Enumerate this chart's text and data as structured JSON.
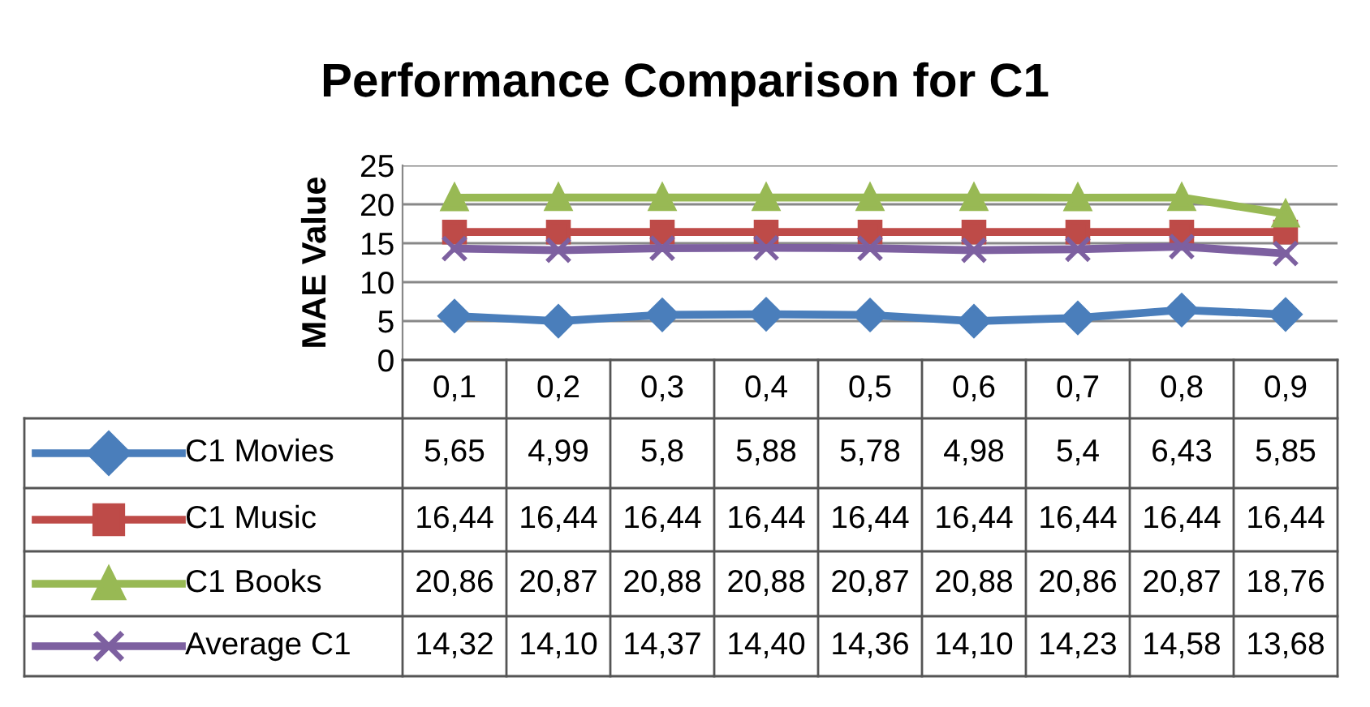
{
  "chart_data": {
    "type": "line",
    "title": "Performance Comparison for C1",
    "ylabel": "MAE Value",
    "categories": [
      "0,1",
      "0,2",
      "0,3",
      "0,4",
      "0,5",
      "0,6",
      "0,7",
      "0,8",
      "0,9"
    ],
    "ylim": [
      0,
      25
    ],
    "yticks": [
      0,
      5,
      10,
      15,
      20,
      25
    ],
    "grid": "y",
    "legend": "bottom left",
    "tick_labels": "y",
    "line_style": "solid",
    "series": [
      {
        "name": "C1 Movies",
        "color": "#4a7ebb",
        "marker": "diamond",
        "values": [
          5.65,
          4.99,
          5.8,
          5.88,
          5.78,
          4.98,
          5.4,
          6.43,
          5.85
        ],
        "value_labels": [
          "5,65",
          "4,99",
          "5,8",
          "5,88",
          "5,78",
          "4,98",
          "5,4",
          "6,43",
          "5,85"
        ]
      },
      {
        "name": "C1 Music",
        "color": "#be4b48",
        "marker": "square",
        "values": [
          16.44,
          16.44,
          16.44,
          16.44,
          16.44,
          16.44,
          16.44,
          16.44,
          16.44
        ],
        "value_labels": [
          "16,44",
          "16,44",
          "16,44",
          "16,44",
          "16,44",
          "16,44",
          "16,44",
          "16,44",
          "16,44"
        ]
      },
      {
        "name": "C1 Books",
        "color": "#98b954",
        "marker": "triangle",
        "values": [
          20.86,
          20.87,
          20.88,
          20.88,
          20.87,
          20.88,
          20.86,
          20.87,
          18.76
        ],
        "value_labels": [
          "20,86",
          "20,87",
          "20,88",
          "20,88",
          "20,87",
          "20,88",
          "20,86",
          "20,87",
          "18,76"
        ]
      },
      {
        "name": "Average C1",
        "color": "#7d60a0",
        "marker": "cross",
        "values": [
          14.32,
          14.1,
          14.37,
          14.4,
          14.36,
          14.1,
          14.23,
          14.58,
          13.68
        ],
        "value_labels": [
          "14,32",
          "14,10",
          "14,37",
          "14,40",
          "14,36",
          "14,10",
          "14,23",
          "14,58",
          "13,68"
        ]
      }
    ]
  }
}
